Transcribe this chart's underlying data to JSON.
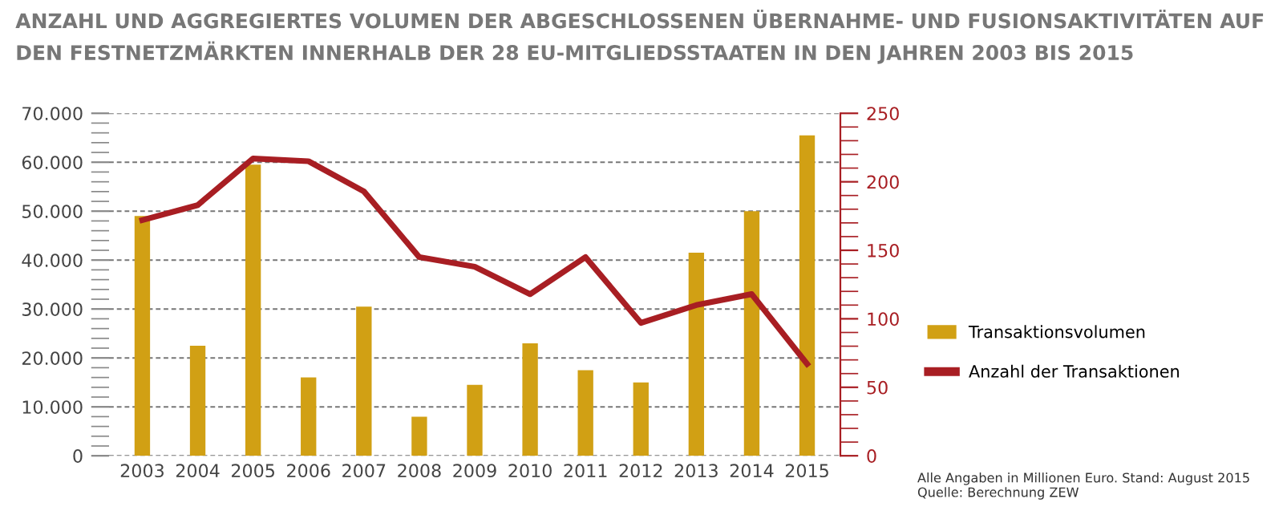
{
  "chart_data": {
    "type": "bar",
    "title": "ANZAHL UND AGGREGIERTES VOLUMEN DER ABGESCHLOSSENEN ÜBERNAHME- UND FUSIONSAKTIVITÄTEN AUF\nDEN FESTNETZMÄRKTEN INNERHALB DER 28 EU-MITGLIEDSSTAATEN IN DEN JAHREN 2003 BIS 2015",
    "categories": [
      "2003",
      "2004",
      "2005",
      "2006",
      "2007",
      "2008",
      "2009",
      "2010",
      "2011",
      "2012",
      "2013",
      "2014",
      "2015"
    ],
    "series": [
      {
        "name": "Transaktionsvolumen",
        "color": "#d1a014",
        "values": [
          49000,
          22500,
          59500,
          16000,
          30500,
          8000,
          14500,
          23000,
          17500,
          15000,
          41500,
          50000,
          65500
        ]
      },
      {
        "name": "Anzahl der Transaktionen",
        "type": "line",
        "axis": "y2",
        "color": "#a81e23",
        "values": [
          172,
          183,
          217,
          215,
          193,
          145,
          138,
          118,
          145,
          97,
          110,
          118,
          67
        ]
      }
    ],
    "ylim": [
      0,
      70000
    ],
    "yticks": [
      {
        "value": 0,
        "label": "0"
      },
      {
        "value": 10000,
        "label": "10.000"
      },
      {
        "value": 20000,
        "label": "20.000"
      },
      {
        "value": 30000,
        "label": "30.000"
      },
      {
        "value": 40000,
        "label": "40.000"
      },
      {
        "value": 50000,
        "label": "50.000"
      },
      {
        "value": 60000,
        "label": "60.000"
      },
      {
        "value": 70000,
        "label": "70.000"
      }
    ],
    "y2lim": [
      0,
      250
    ],
    "y2ticks": [
      0,
      50,
      100,
      150,
      200,
      250
    ],
    "grid": "y",
    "legend": "right",
    "marker": "none",
    "line_style": "solid",
    "annotations": [
      "Alle Angaben in Millionen Euro. Stand: August 2015\nQuelle: Berechnung ZEW"
    ]
  }
}
